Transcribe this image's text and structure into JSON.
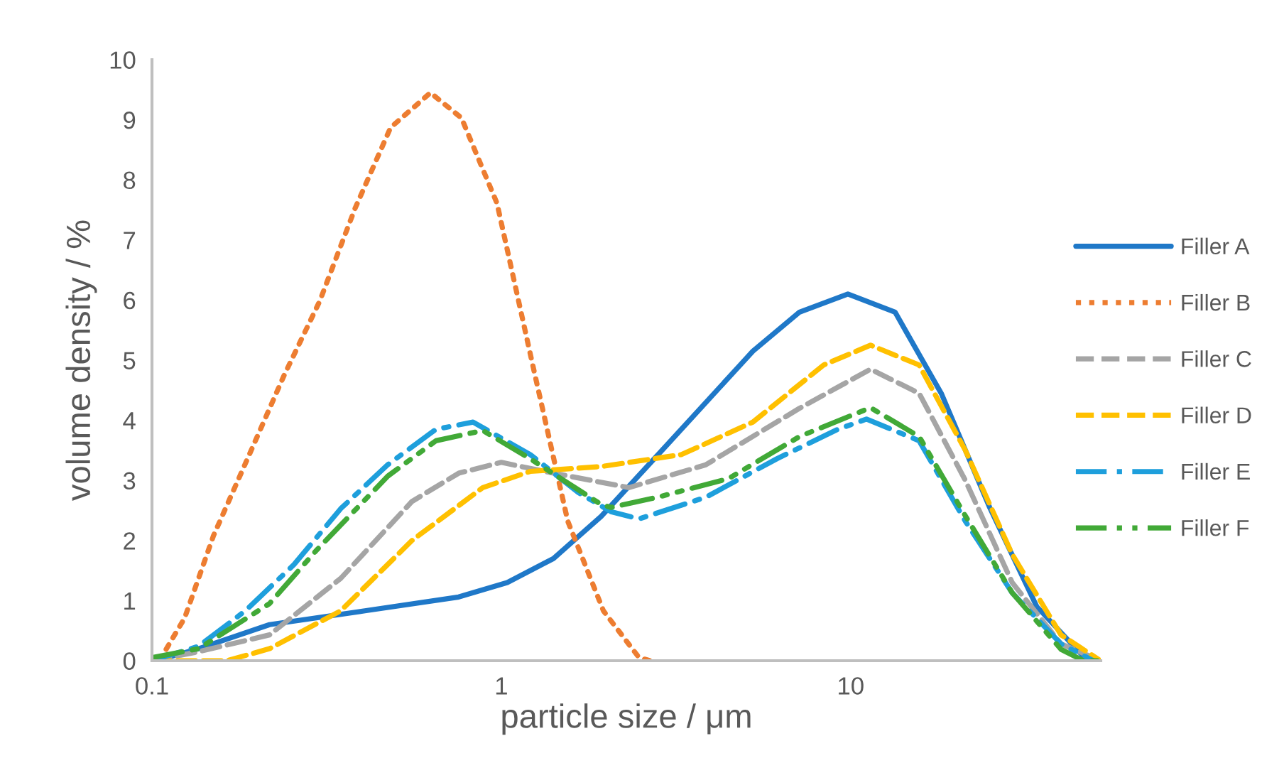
{
  "chart_data": {
    "type": "line",
    "xlabel": "particle size / μm",
    "ylabel": "volume density / %",
    "log": "x",
    "xlim": [
      0.1,
      52
    ],
    "xticks": [
      0.1,
      1,
      10
    ],
    "ylim": [
      0,
      10
    ],
    "yticks": [
      0,
      1,
      2,
      3,
      4,
      5,
      6,
      7,
      8,
      9,
      10
    ],
    "grid": false,
    "legend": "right",
    "marker": "none",
    "series": [
      {
        "name": "Filler A",
        "color": "#1f78c8",
        "line_style": "solid",
        "x": [
          0.103,
          0.136,
          0.217,
          0.407,
          0.755,
          1.04,
          1.41,
          1.93,
          2.99,
          5.25,
          7.14,
          9.82,
          13.4,
          18.2,
          25.0,
          34.1,
          46.4,
          51.9
        ],
        "values": [
          0,
          0.2,
          0.6,
          0.83,
          1.06,
          1.3,
          1.7,
          2.4,
          3.6,
          5.15,
          5.8,
          6.1,
          5.8,
          4.44,
          2.55,
          0.9,
          0.07,
          0
        ]
      },
      {
        "name": "Filler B",
        "color": "#ed7d31",
        "line_style": "dotted",
        "x": [
          0.105,
          0.124,
          0.15,
          0.189,
          0.239,
          0.302,
          0.381,
          0.482,
          0.627,
          0.769,
          0.972,
          1.23,
          1.55,
          1.96,
          2.48,
          2.67
        ],
        "values": [
          0,
          0.71,
          2.08,
          3.4,
          4.75,
          5.98,
          7.52,
          8.87,
          9.45,
          9.03,
          7.61,
          4.92,
          2.32,
          0.83,
          0.05,
          0
        ]
      },
      {
        "name": "Filler C",
        "color": "#a5a5a5",
        "line_style": "dashed",
        "x": [
          0.1,
          0.136,
          0.217,
          0.347,
          0.555,
          0.755,
          1.0,
          1.41,
          2.32,
          3.85,
          7.14,
          11.4,
          15.7,
          21.3,
          29.0,
          40.0,
          51.9
        ],
        "values": [
          0,
          0.15,
          0.43,
          1.37,
          2.65,
          3.12,
          3.3,
          3.12,
          2.88,
          3.26,
          4.2,
          4.85,
          4.45,
          3.0,
          1.3,
          0.28,
          0
        ]
      },
      {
        "name": "Filler D",
        "color": "#ffc000",
        "line_style": "dashed",
        "x": [
          0.1,
          0.164,
          0.217,
          0.347,
          0.555,
          0.885,
          1.21,
          1.93,
          3.28,
          5.25,
          8.37,
          11.4,
          15.7,
          21.3,
          29.0,
          40.0,
          51.9
        ],
        "values": [
          0,
          0,
          0.2,
          0.83,
          2.0,
          2.88,
          3.15,
          3.23,
          3.43,
          3.97,
          4.92,
          5.25,
          4.92,
          3.5,
          1.77,
          0.43,
          0
        ]
      },
      {
        "name": "Filler E",
        "color": "#1e9fdc",
        "line_style": "dashdot",
        "x": [
          0.1,
          0.136,
          0.185,
          0.255,
          0.347,
          0.473,
          0.65,
          0.83,
          1.21,
          1.66,
          2.06,
          2.48,
          3.85,
          6.15,
          9.19,
          11.1,
          15.7,
          21.3,
          29.0,
          40.0,
          49.5
        ],
        "values": [
          0,
          0.24,
          0.83,
          1.6,
          2.53,
          3.26,
          3.85,
          3.97,
          3.43,
          2.8,
          2.48,
          2.36,
          2.72,
          3.36,
          3.85,
          4.02,
          3.66,
          2.32,
          1.13,
          0.28,
          0
        ]
      },
      {
        "name": "Filler F",
        "color": "#41a937",
        "line_style": "dashdotdot",
        "x": [
          0.1,
          0.136,
          0.217,
          0.296,
          0.473,
          0.65,
          0.885,
          1.21,
          1.93,
          2.06,
          2.8,
          4.47,
          7.14,
          11.4,
          15.7,
          21.3,
          29.0,
          40.0,
          46.4,
          51.9
        ],
        "values": [
          0.05,
          0.2,
          0.95,
          1.84,
          3.07,
          3.66,
          3.83,
          3.36,
          2.6,
          2.55,
          2.72,
          3.03,
          3.73,
          4.21,
          3.73,
          2.41,
          1.13,
          0.19,
          0,
          0
        ]
      }
    ]
  }
}
